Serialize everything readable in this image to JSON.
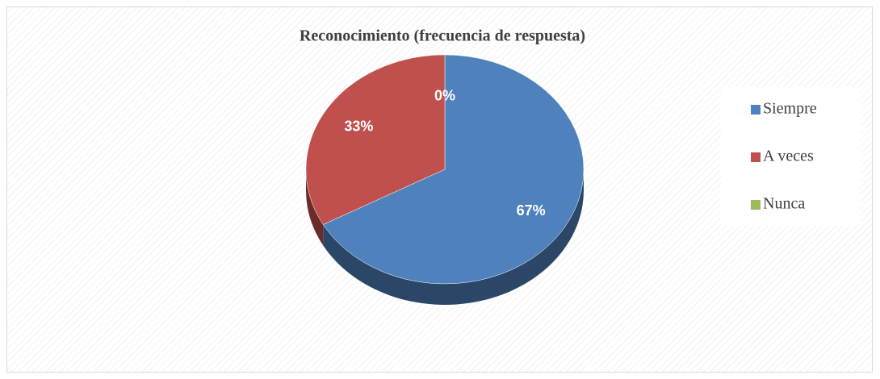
{
  "chart_data": {
    "type": "pie",
    "title": "Reconocimiento (frecuencia de respuesta)",
    "categories": [
      "Siempre",
      "A veces",
      "Nunca"
    ],
    "values": [
      67,
      33,
      0
    ],
    "value_labels": [
      "67%",
      "33%",
      "0%"
    ],
    "colors": [
      "#4f81bd",
      "#c0504d",
      "#9bbb59"
    ],
    "legend": "right"
  }
}
